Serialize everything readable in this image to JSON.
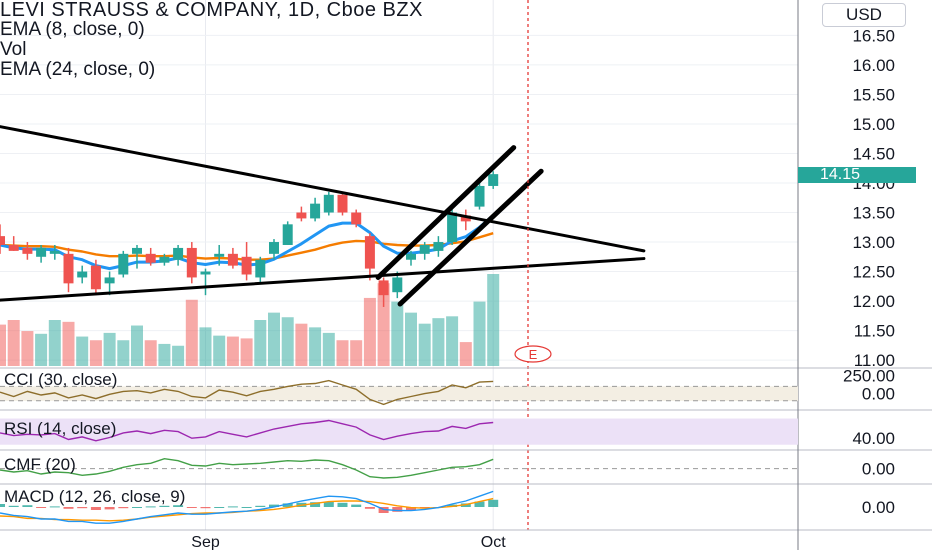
{
  "legend": {
    "title": "LEVI STRAUSS & COMPANY, 1D, Cboe BZX",
    "ema8": "EMA (8, close, 0)",
    "vol": "Vol",
    "ema24": "EMA (24, close, 0)"
  },
  "currency": "USD",
  "current_price": "14.15",
  "earnings_marker": "E",
  "indicators": {
    "cci": "CCI (30, close)",
    "rsi": "RSI (14, close)",
    "cmf": "CMF (20)",
    "macd": "MACD (12, 26, close, 9)"
  },
  "colors": {
    "up": "#26a69a",
    "down": "#ef5350",
    "ema8": "#2196f3",
    "ema24": "#f57c00",
    "cci_line": "#8d6e2b",
    "rsi_line": "#9c27b0",
    "rsi_band": "#ece1f7",
    "cmf_line": "#43a047",
    "macd_line": "#2196f3",
    "signal_line": "#ff9800",
    "cursor": "#e53935"
  },
  "chart_data": {
    "type": "candlestick",
    "title": "LEVI STRAUSS & COMPANY, 1D, Cboe BZX",
    "ylim": [
      10.9,
      17.1
    ],
    "yticks": [
      "16.50",
      "16.00",
      "15.50",
      "15.00",
      "14.50",
      "14.00",
      "13.50",
      "13.00",
      "12.50",
      "12.00",
      "11.50",
      "11.00"
    ],
    "xticks": [
      {
        "label": "Sep",
        "index": 15
      },
      {
        "label": "Oct",
        "index": 36
      }
    ],
    "candles": [
      {
        "o": 13.1,
        "h": 13.3,
        "l": 12.8,
        "c": 12.95
      },
      {
        "o": 12.95,
        "h": 13.1,
        "l": 12.85,
        "c": 12.85
      },
      {
        "o": 12.9,
        "h": 13.0,
        "l": 12.7,
        "c": 12.8
      },
      {
        "o": 12.75,
        "h": 12.95,
        "l": 12.65,
        "c": 12.9
      },
      {
        "o": 12.8,
        "h": 12.95,
        "l": 12.7,
        "c": 12.85
      },
      {
        "o": 12.8,
        "h": 12.9,
        "l": 12.15,
        "c": 12.3
      },
      {
        "o": 12.4,
        "h": 12.6,
        "l": 12.3,
        "c": 12.5
      },
      {
        "o": 12.6,
        "h": 12.7,
        "l": 12.1,
        "c": 12.2
      },
      {
        "o": 12.3,
        "h": 12.5,
        "l": 12.1,
        "c": 12.4
      },
      {
        "o": 12.45,
        "h": 12.85,
        "l": 12.4,
        "c": 12.8
      },
      {
        "o": 12.8,
        "h": 12.95,
        "l": 12.55,
        "c": 12.9
      },
      {
        "o": 12.8,
        "h": 12.9,
        "l": 12.6,
        "c": 12.65
      },
      {
        "o": 12.65,
        "h": 12.8,
        "l": 12.6,
        "c": 12.75
      },
      {
        "o": 12.7,
        "h": 12.95,
        "l": 12.6,
        "c": 12.9
      },
      {
        "o": 12.9,
        "h": 13.0,
        "l": 12.3,
        "c": 12.4
      },
      {
        "o": 12.45,
        "h": 12.55,
        "l": 12.1,
        "c": 12.5
      },
      {
        "o": 12.75,
        "h": 12.95,
        "l": 12.6,
        "c": 12.8
      },
      {
        "o": 12.8,
        "h": 12.9,
        "l": 12.55,
        "c": 12.6
      },
      {
        "o": 12.75,
        "h": 13.0,
        "l": 12.35,
        "c": 12.45
      },
      {
        "o": 12.4,
        "h": 12.75,
        "l": 12.3,
        "c": 12.7
      },
      {
        "o": 12.8,
        "h": 13.05,
        "l": 12.7,
        "c": 13.0
      },
      {
        "o": 12.95,
        "h": 13.35,
        "l": 12.95,
        "c": 13.3
      },
      {
        "o": 13.5,
        "h": 13.6,
        "l": 13.35,
        "c": 13.4
      },
      {
        "o": 13.4,
        "h": 13.75,
        "l": 13.35,
        "c": 13.65
      },
      {
        "o": 13.5,
        "h": 13.85,
        "l": 13.45,
        "c": 13.8
      },
      {
        "o": 13.8,
        "h": 13.85,
        "l": 13.45,
        "c": 13.5
      },
      {
        "o": 13.5,
        "h": 13.55,
        "l": 13.25,
        "c": 13.3
      },
      {
        "o": 13.1,
        "h": 13.15,
        "l": 12.35,
        "c": 12.55
      },
      {
        "o": 12.35,
        "h": 12.4,
        "l": 11.9,
        "c": 12.1
      },
      {
        "o": 12.15,
        "h": 12.5,
        "l": 12.05,
        "c": 12.4
      },
      {
        "o": 12.7,
        "h": 12.85,
        "l": 12.6,
        "c": 12.8
      },
      {
        "o": 12.8,
        "h": 13.0,
        "l": 12.7,
        "c": 12.95
      },
      {
        "o": 12.85,
        "h": 13.1,
        "l": 12.75,
        "c": 13.0
      },
      {
        "o": 13.0,
        "h": 13.55,
        "l": 12.95,
        "c": 13.5
      },
      {
        "o": 13.45,
        "h": 13.55,
        "l": 13.2,
        "c": 13.35
      },
      {
        "o": 13.6,
        "h": 14.05,
        "l": 13.55,
        "c": 13.95
      },
      {
        "o": 13.95,
        "h": 14.2,
        "l": 13.9,
        "c": 14.15
      }
    ],
    "ema8": [
      12.95,
      12.9,
      12.88,
      12.88,
      12.87,
      12.75,
      12.7,
      12.6,
      12.55,
      12.6,
      12.66,
      12.66,
      12.68,
      12.73,
      12.65,
      12.62,
      12.66,
      12.65,
      12.61,
      12.63,
      12.71,
      12.84,
      12.97,
      13.12,
      13.27,
      13.32,
      13.32,
      13.16,
      12.93,
      12.81,
      12.81,
      12.84,
      12.88,
      13.02,
      13.09,
      13.25,
      13.45
    ],
    "ema24": [
      12.95,
      12.94,
      12.93,
      12.93,
      12.92,
      12.87,
      12.84,
      12.79,
      12.76,
      12.76,
      12.77,
      12.76,
      12.76,
      12.77,
      12.74,
      12.72,
      12.73,
      12.72,
      12.7,
      12.7,
      12.72,
      12.77,
      12.82,
      12.87,
      12.94,
      12.99,
      13.02,
      13.01,
      12.97,
      12.95,
      12.94,
      12.94,
      12.95,
      12.98,
      13.01,
      13.08,
      13.15
    ],
    "volume": [
      0.45,
      0.5,
      0.38,
      0.35,
      0.5,
      0.48,
      0.32,
      0.28,
      0.36,
      0.28,
      0.44,
      0.28,
      0.24,
      0.22,
      0.72,
      0.42,
      0.33,
      0.32,
      0.3,
      0.5,
      0.58,
      0.53,
      0.46,
      0.42,
      0.36,
      0.28,
      0.28,
      0.74,
      0.9,
      0.7,
      0.58,
      0.46,
      0.52,
      0.54,
      0.26,
      0.7,
      1.0
    ],
    "cci": [
      20,
      -40,
      30,
      -20,
      10,
      -60,
      -20,
      -70,
      -10,
      30,
      40,
      10,
      60,
      30,
      -40,
      -60,
      50,
      20,
      -30,
      30,
      60,
      100,
      130,
      140,
      180,
      120,
      60,
      -80,
      -150,
      -80,
      -40,
      0,
      30,
      120,
      80,
      160,
      170
    ],
    "cci_ylim": [
      -200,
      300
    ],
    "rsi": [
      48,
      44,
      46,
      45,
      47,
      38,
      42,
      36,
      41,
      48,
      51,
      47,
      52,
      50,
      40,
      42,
      50,
      46,
      42,
      48,
      54,
      58,
      62,
      64,
      67,
      62,
      57,
      45,
      38,
      43,
      47,
      50,
      51,
      58,
      55,
      62,
      64
    ],
    "rsi_ylim": [
      25,
      80
    ],
    "cmf": [
      -0.02,
      -0.05,
      -0.03,
      -0.08,
      -0.05,
      -0.06,
      -0.1,
      -0.08,
      -0.04,
      0.02,
      0.06,
      0.08,
      0.15,
      0.12,
      0.05,
      0.04,
      0.08,
      0.06,
      0.07,
      0.08,
      0.1,
      0.12,
      0.11,
      0.13,
      0.12,
      0.06,
      -0.02,
      -0.12,
      -0.14,
      -0.13,
      -0.1,
      -0.06,
      -0.02,
      0.02,
      0.03,
      0.06,
      0.14
    ],
    "cmf_ylim": [
      -0.2,
      0.25
    ],
    "macd_hist": [
      0.05,
      0.02,
      0.03,
      -0.01,
      0.01,
      -0.03,
      -0.02,
      -0.05,
      -0.04,
      -0.02,
      0.0,
      0.01,
      0.02,
      0.03,
      -0.01,
      -0.02,
      0.0,
      0.01,
      0.0,
      0.02,
      0.04,
      0.06,
      0.07,
      0.08,
      0.09,
      0.07,
      0.04,
      -0.03,
      -0.1,
      -0.08,
      -0.05,
      -0.02,
      0.0,
      0.04,
      0.06,
      0.09,
      0.12
    ],
    "macd_line": [
      -0.1,
      -0.14,
      -0.16,
      -0.2,
      -0.2,
      -0.24,
      -0.24,
      -0.27,
      -0.27,
      -0.24,
      -0.2,
      -0.16,
      -0.13,
      -0.1,
      -0.12,
      -0.12,
      -0.1,
      -0.08,
      -0.07,
      -0.04,
      0.0,
      0.05,
      0.1,
      0.14,
      0.18,
      0.17,
      0.14,
      0.06,
      -0.04,
      -0.06,
      -0.06,
      -0.04,
      -0.01,
      0.05,
      0.1,
      0.18,
      0.26
    ],
    "signal_line": [
      -0.15,
      -0.16,
      -0.19,
      -0.19,
      -0.21,
      -0.21,
      -0.22,
      -0.22,
      -0.23,
      -0.22,
      -0.2,
      -0.17,
      -0.15,
      -0.13,
      -0.11,
      -0.1,
      -0.1,
      -0.09,
      -0.07,
      -0.06,
      -0.04,
      -0.01,
      0.03,
      0.06,
      0.09,
      0.1,
      0.1,
      0.09,
      0.06,
      0.02,
      -0.01,
      -0.02,
      -0.01,
      0.01,
      0.04,
      0.09,
      0.14
    ],
    "macd_ylim": [
      -0.35,
      0.35
    ],
    "annotations": {
      "triangle_upper": [
        {
          "i": -1,
          "p": 15.0
        },
        {
          "i": 47,
          "p": 12.85
        }
      ],
      "triangle_lower": [
        {
          "i": -1,
          "p": 12.0
        },
        {
          "i": 47,
          "p": 12.72
        }
      ],
      "channel_upper": [
        {
          "i": 27.6,
          "p": 12.4
        },
        {
          "i": 37.5,
          "p": 14.6
        }
      ],
      "channel_lower": [
        {
          "i": 29.2,
          "p": 11.95
        },
        {
          "i": 39.5,
          "p": 14.2
        }
      ]
    }
  }
}
